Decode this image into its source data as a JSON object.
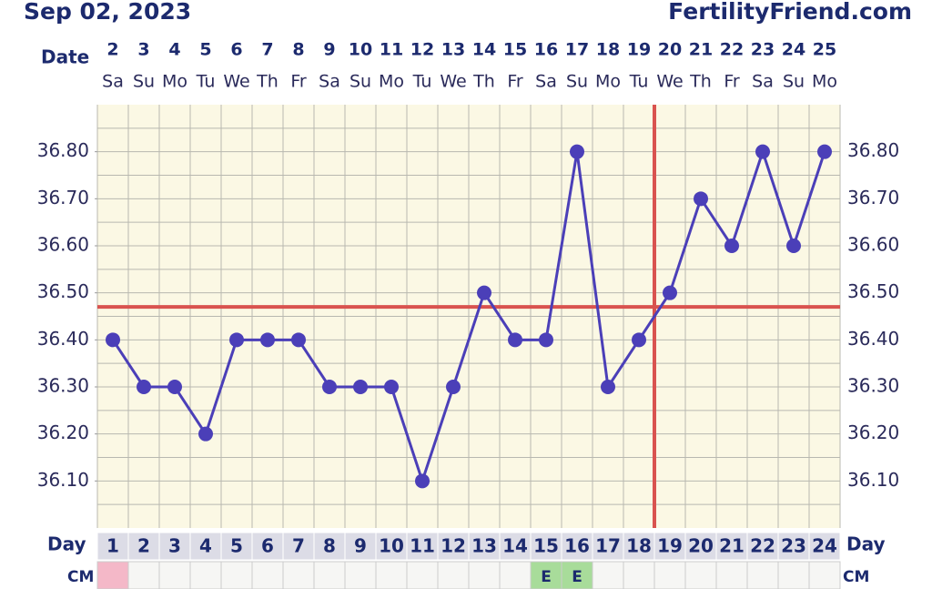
{
  "chart_data": {
    "type": "line",
    "title": "Sep 02, 2023",
    "brand": "FertilityFriend.com",
    "date_label": "Date",
    "dates": [
      "2",
      "3",
      "4",
      "5",
      "6",
      "7",
      "8",
      "9",
      "10",
      "11",
      "12",
      "13",
      "14",
      "15",
      "16",
      "17",
      "18",
      "19",
      "20",
      "21",
      "22",
      "23",
      "24",
      "25"
    ],
    "weekdays": [
      "Sa",
      "Su",
      "Mo",
      "Tu",
      "We",
      "Th",
      "Fr",
      "Sa",
      "Su",
      "Mo",
      "Tu",
      "We",
      "Th",
      "Fr",
      "Sa",
      "Su",
      "Mo",
      "Tu",
      "We",
      "Th",
      "Fr",
      "Sa",
      "Su",
      "Mo"
    ],
    "day_label": "Day",
    "categories": [
      1,
      2,
      3,
      4,
      5,
      6,
      7,
      8,
      9,
      10,
      11,
      12,
      13,
      14,
      15,
      16,
      17,
      18,
      19,
      20,
      21,
      22,
      23,
      24
    ],
    "values": [
      36.4,
      36.3,
      36.3,
      36.2,
      36.4,
      36.4,
      36.4,
      36.3,
      36.3,
      36.3,
      36.1,
      36.3,
      36.5,
      36.4,
      36.4,
      36.8,
      36.3,
      36.4,
      36.5,
      36.7,
      36.6,
      36.8,
      36.6,
      36.8
    ],
    "color": "#4b3fb8",
    "cm_label": "CM",
    "cm": [
      null,
      null,
      null,
      null,
      null,
      null,
      null,
      null,
      null,
      null,
      null,
      null,
      null,
      null,
      "E",
      "E",
      null,
      null,
      null,
      null,
      null,
      null,
      null,
      null
    ],
    "cm_colors": [
      "#f4b8c8",
      null,
      null,
      null,
      null,
      null,
      null,
      null,
      null,
      null,
      null,
      null,
      null,
      null,
      "#a8dc9a",
      "#a8dc9a",
      null,
      null,
      null,
      null,
      null,
      null,
      null,
      null
    ],
    "ylim": [
      36.0,
      36.9
    ],
    "yticks": [
      {
        "value": 36.1,
        "label": "36.10"
      },
      {
        "value": 36.2,
        "label": "36.20"
      },
      {
        "value": 36.3,
        "label": "36.30"
      },
      {
        "value": 36.4,
        "label": "36.40"
      },
      {
        "value": 36.5,
        "label": "36.50"
      },
      {
        "value": 36.6,
        "label": "36.60"
      },
      {
        "value": 36.7,
        "label": "36.70"
      },
      {
        "value": 36.8,
        "label": "36.80"
      }
    ],
    "ygrid": [
      36.05,
      36.1,
      36.15,
      36.2,
      36.25,
      36.3,
      36.35,
      36.4,
      36.45,
      36.5,
      36.55,
      36.6,
      36.65,
      36.7,
      36.75,
      36.8,
      36.85
    ],
    "coverline": 36.47,
    "coverline_color": "#d9534f",
    "ovulation_day": 18,
    "ovulation_color": "#d9534f"
  }
}
